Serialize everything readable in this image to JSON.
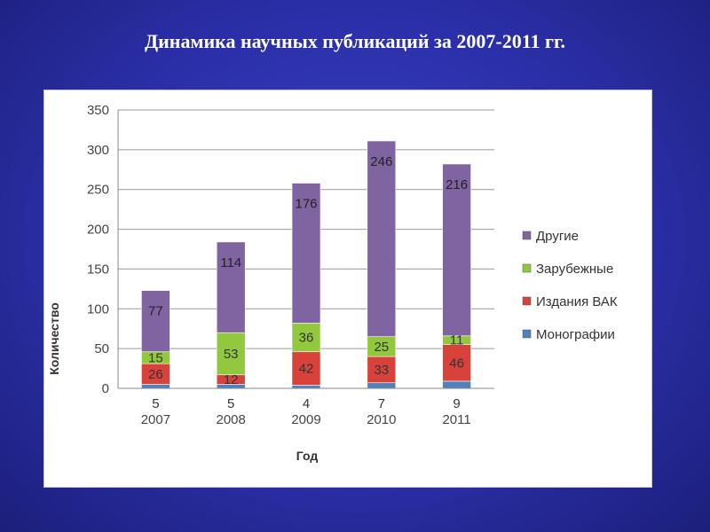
{
  "slide": {
    "title": "Динамика научных публикаций за 2007-2011 гг."
  },
  "chart_data": {
    "type": "bar",
    "stacked": true,
    "title": "",
    "xlabel": "Год",
    "ylabel": "Количество",
    "ylim": [
      0,
      350
    ],
    "yticks": [
      0,
      50,
      100,
      150,
      200,
      250,
      300,
      350
    ],
    "categories": [
      "2007",
      "2008",
      "2009",
      "2010",
      "2011"
    ],
    "grid": true,
    "legend_position": "right",
    "series": [
      {
        "name": "Монографии",
        "values": [
          5,
          5,
          4,
          7,
          9
        ],
        "color": "#4f81bd",
        "label_color": "#333333"
      },
      {
        "name": "Издания ВАК",
        "values": [
          26,
          12,
          42,
          33,
          46
        ],
        "color": "#d9423a",
        "label_color": "#333333"
      },
      {
        "name": "Зарубежные",
        "values": [
          15,
          53,
          36,
          25,
          11
        ],
        "color": "#92c83e",
        "label_color": "#333333"
      },
      {
        "name": "Другие",
        "values": [
          77,
          114,
          176,
          246,
          216
        ],
        "color": "#8064a2",
        "label_color": "#222222"
      }
    ]
  }
}
